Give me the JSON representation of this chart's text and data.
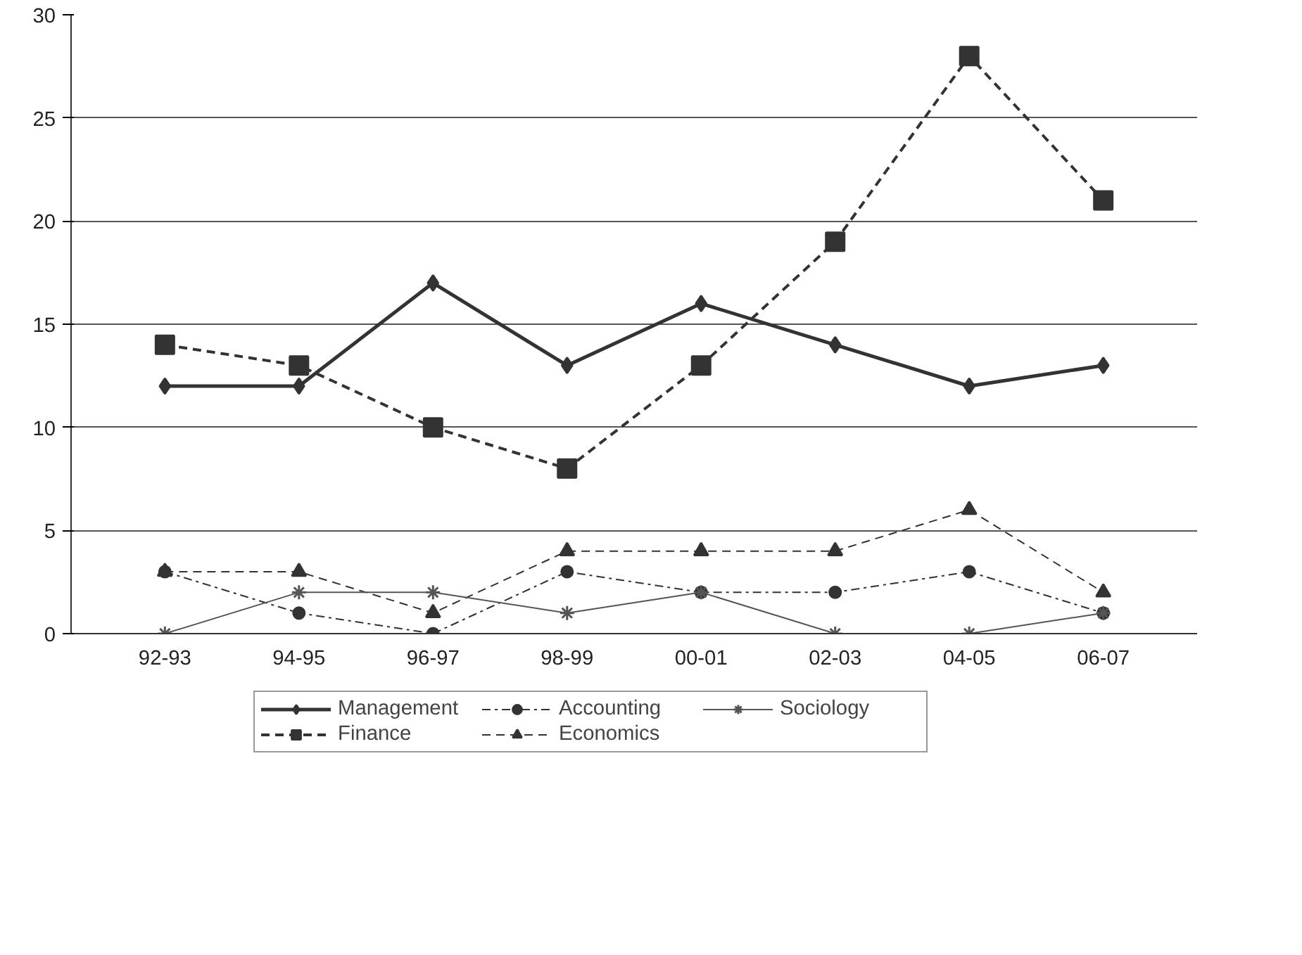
{
  "chart_data": {
    "type": "line",
    "categories": [
      "92-93",
      "94-95",
      "96-97",
      "98-99",
      "00-01",
      "02-03",
      "04-05",
      "06-07"
    ],
    "series": [
      {
        "name": "Management",
        "color": "#333333",
        "values": [
          12,
          12,
          17,
          13,
          16,
          14,
          12,
          13
        ],
        "marker": "diamond",
        "line_style": "solid"
      },
      {
        "name": "Finance",
        "color": "#333333",
        "values": [
          14,
          13,
          10,
          8,
          13,
          19,
          28,
          21
        ],
        "marker": "square",
        "line_style": "dashed"
      },
      {
        "name": "Accounting",
        "color": "#333333",
        "values": [
          3,
          1,
          0,
          3,
          2,
          2,
          3,
          1
        ],
        "marker": "circle",
        "line_style": "dashdot"
      },
      {
        "name": "Economics",
        "color": "#333333",
        "values": [
          3,
          3,
          1,
          4,
          4,
          4,
          6,
          2
        ],
        "marker": "triangle",
        "line_style": "dashed"
      },
      {
        "name": "Sociology",
        "color": "#555555",
        "values": [
          0,
          2,
          2,
          1,
          2,
          0,
          0,
          1
        ],
        "marker": "cross",
        "line_style": "solid"
      }
    ],
    "ylim": [
      0,
      30
    ],
    "yticks": [
      0,
      5,
      10,
      15,
      20,
      25,
      30
    ],
    "grid": "y",
    "legend": "bottom"
  }
}
